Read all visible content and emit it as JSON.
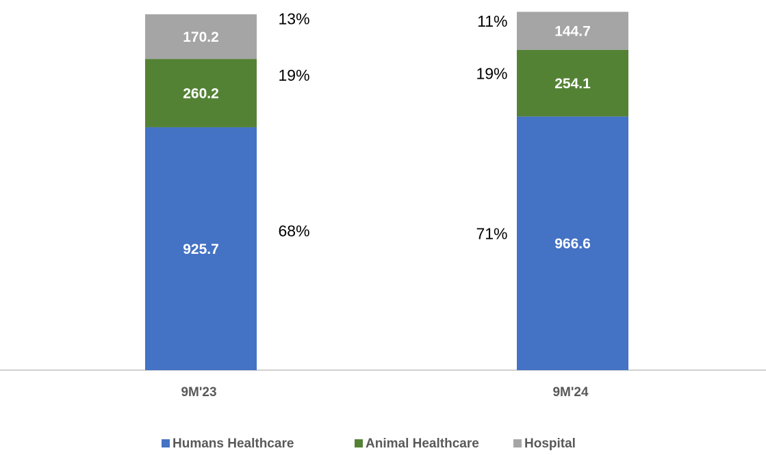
{
  "chart_data": {
    "type": "stacked_bar",
    "categories": [
      "9M'23",
      "9M'24"
    ],
    "series": [
      {
        "name": "Humans Healthcare",
        "color": "#4472c4",
        "values": [
          925.7,
          966.6
        ],
        "shares": [
          "68%",
          "71%"
        ]
      },
      {
        "name": "Animal Healthcare",
        "color": "#548235",
        "values": [
          260.2,
          254.1
        ],
        "shares": [
          "19%",
          "19%"
        ]
      },
      {
        "name": "Hospital",
        "color": "#a5a5a5",
        "values": [
          170.2,
          144.7
        ],
        "shares": [
          "13%",
          "11%"
        ]
      }
    ],
    "ylim": [
      0,
      1400
    ],
    "legend": "bottom"
  }
}
